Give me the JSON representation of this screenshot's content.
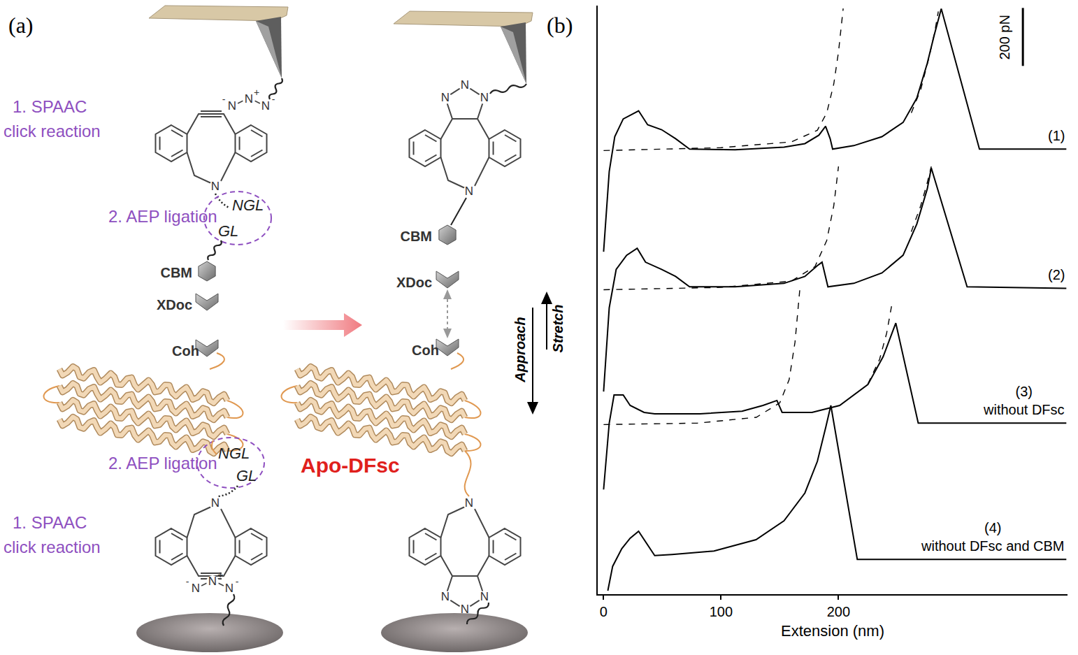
{
  "panel_a": {
    "label": "(a)",
    "spaac": [
      "1. SPAAC",
      "click reaction"
    ],
    "aep": "2. AEP ligation",
    "ligation": [
      "NGL",
      "GL"
    ],
    "modules": [
      "CBM",
      "XDoc",
      "Coh"
    ],
    "atom": "N",
    "charges": [
      "-",
      "+"
    ],
    "product": "Apo-DFsc"
  },
  "chart_data": {
    "type": "line",
    "panel_label": "(b)",
    "x_label": "Extension (nm)",
    "xlim": [
      -5,
      395
    ],
    "xticks": [
      0,
      100,
      200
    ],
    "ylim": [
      0,
      2030
    ],
    "tick_labels": "x",
    "grid": false,
    "scale_bar": {
      "value": 200,
      "label": "200 pN"
    },
    "arrows": {
      "up": "Stretch",
      "down": "Approach"
    },
    "series": [
      {
        "name": "(1)",
        "color": "#000000",
        "line_style": "solid",
        "x": [
          0,
          4.8,
          9.5,
          16.7,
          29.8,
          37.5,
          49.4,
          61.3,
          73.2,
          112,
          153.6,
          171.4,
          183.3,
          189,
          192.9,
          195,
          213,
          237,
          255,
          266.7,
          275.6,
          281.5,
          287.5,
          320,
          394
        ],
        "values": [
          1181,
          1458,
          1578,
          1639,
          1667,
          1619,
          1602,
          1571,
          1535,
          1533,
          1542,
          1554,
          1583,
          1614,
          1571,
          1535,
          1547,
          1578,
          1627,
          1711,
          1831,
          1928,
          2019,
          1535,
          1535
        ]
      },
      {
        "name": "(2)",
        "color": "#000000",
        "line_style": "solid",
        "x": [
          0,
          4.8,
          10.7,
          19.6,
          28.6,
          35.7,
          49.4,
          61.3,
          73.2,
          112,
          153.6,
          171.4,
          182,
          186,
          191,
          213,
          237,
          255,
          266.7,
          275.6,
          279,
          309.5,
          394
        ],
        "values": [
          699,
          988,
          1120,
          1169,
          1193,
          1145,
          1120,
          1096,
          1060,
          1060,
          1072,
          1096,
          1133,
          1145,
          1060,
          1072,
          1108,
          1169,
          1277,
          1398,
          1470,
          1060,
          1055
        ]
      },
      {
        "name": "(3)",
        "annotation": "without DFsc",
        "color": "#000000",
        "line_style": "solid",
        "x": [
          0,
          4.8,
          8.9,
          16.7,
          22.6,
          34.5,
          43.5,
          82,
          117.9,
          135.7,
          147.6,
          152,
          177.4,
          201,
          225,
          238,
          248.8,
          267.9,
          394
        ],
        "values": [
          361,
          590,
          687,
          687,
          651,
          627,
          622,
          622,
          631,
          651,
          668,
          627,
          627,
          651,
          723,
          819,
          935,
          590,
          590
        ]
      },
      {
        "name": "(4)",
        "annotation": "without DFsc and CBM",
        "color": "#000000",
        "line_style": "solid",
        "x": [
          3.6,
          7.7,
          15.5,
          22.6,
          29.8,
          35.7,
          43.5,
          58.3,
          94,
          129.8,
          153.6,
          171.4,
          182,
          189.3,
          193.5,
          216,
          394
        ],
        "values": [
          12,
          96,
          157,
          193,
          217,
          181,
          133,
          137,
          149,
          188,
          253,
          349,
          458,
          578,
          651,
          120,
          120
        ]
      },
      {
        "color": "#000000",
        "line_style": "dashed",
        "x": [
          0,
          100,
          160,
          182,
          190,
          196,
          200,
          204
        ],
        "values": [
          1530,
          1540,
          1560,
          1600,
          1660,
          1760,
          1870,
          2020
        ]
      },
      {
        "color": "#000000",
        "line_style": "dashed",
        "x": [
          262,
          270,
          277,
          282,
          285
        ],
        "values": [
          1660,
          1740,
          1850,
          1940,
          2010
        ]
      },
      {
        "color": "#000000",
        "line_style": "dashed",
        "x": [
          0,
          100,
          160,
          180,
          190,
          196,
          200
        ],
        "values": [
          1050,
          1058,
          1080,
          1130,
          1220,
          1340,
          1475
        ]
      },
      {
        "color": "#000000",
        "line_style": "dashed",
        "x": [
          262,
          270,
          275,
          279
        ],
        "values": [
          1250,
          1340,
          1410,
          1475
        ]
      },
      {
        "color": "#000000",
        "line_style": "dashed",
        "x": [
          0,
          80,
          130,
          150,
          158,
          163,
          167
        ],
        "values": [
          585,
          590,
          610,
          660,
          740,
          870,
          1048
        ]
      },
      {
        "color": "#000000",
        "line_style": "dashed",
        "x": [
          225,
          235,
          241,
          246
        ],
        "values": [
          725,
          810,
          900,
          1012
        ]
      }
    ]
  }
}
